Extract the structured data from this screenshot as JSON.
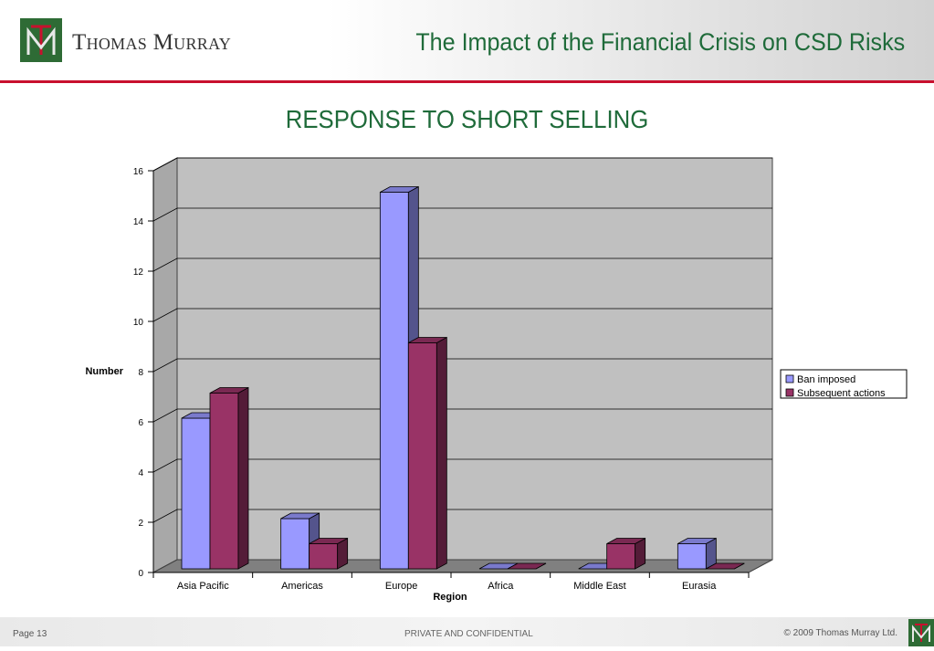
{
  "header": {
    "company": "Thomas Murray",
    "title": "The Impact of the Financial Crisis on CSD Risks"
  },
  "slide": {
    "title": "RESPONSE TO SHORT SELLING"
  },
  "footer": {
    "page": "Page 13",
    "confidential": "PRIVATE AND CONFIDENTIAL",
    "copyright": "© 2009 Thomas Murray Ltd."
  },
  "colors": {
    "brand_green": "#2e6b35",
    "title_green": "#1f6b3a",
    "accent_red": "#c8102e",
    "series_ban": "#9999ff",
    "series_subsequent": "#993366",
    "plot_bg": "#c0c0c0"
  },
  "chart_data": {
    "type": "bar",
    "style": "3d-clustered",
    "categories": [
      "Asia Pacific",
      "Americas",
      "Europe",
      "Africa",
      "Middle East",
      "Eurasia"
    ],
    "series": [
      {
        "name": "Ban imposed",
        "values": [
          6,
          2,
          15,
          0,
          0,
          1
        ]
      },
      {
        "name": "Subsequent actions",
        "values": [
          7,
          1,
          9,
          0,
          1,
          0
        ]
      }
    ],
    "xlabel": "Region",
    "ylabel": "Number",
    "ylim": [
      0,
      16
    ],
    "yticks": [
      "0",
      "2",
      "4",
      "6",
      "8",
      "10",
      "12",
      "14",
      "16"
    ],
    "grid": true,
    "legend": "right"
  }
}
